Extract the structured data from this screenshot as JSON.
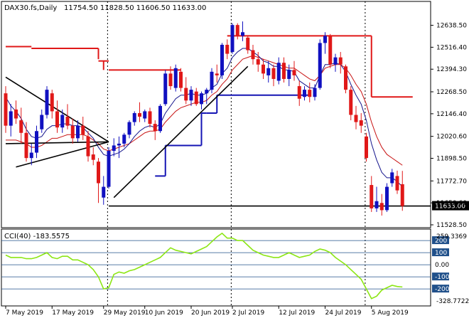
{
  "header": {
    "symbol": "DAX30.fs,Daily",
    "ohlc": "11754.50 11828.50 11606.50 11633.00"
  },
  "indicator": {
    "label": "CCI(40) -183.5575",
    "max_label": "259.3369",
    "min_label": "-328.7722",
    "level_labels": [
      "200",
      "100",
      "0.00",
      "-100",
      "-200"
    ]
  },
  "colors": {
    "bull": "#1010c0",
    "bear": "#e01818",
    "channel": "#e01818",
    "stop": "#1414b4",
    "ma_blue": "#14148c",
    "ma_red": "#c81414",
    "trend": "#000000",
    "cci": "#8ce614",
    "level_line": "#20508a",
    "price_tag_bg": "#000000"
  },
  "chart_data": [
    {
      "type": "candlestick",
      "title": "DAX30.fs,Daily",
      "ylim": [
        11528.5,
        12700
      ],
      "y_ticks": [
        "12638.50",
        "12516.40",
        "12394.30",
        "12268.50",
        "12146.40",
        "12020.60",
        "11898.50",
        "11772.70",
        "11650.60",
        "11528.50"
      ],
      "current_price": "11633.00",
      "x_ticks": [
        "7 May 2019",
        "17 May 2019",
        "29 May 2019",
        "10 Jun 2019",
        "20 Jun 2019",
        "2 Jul 2019",
        "12 Jul 2019",
        "24 Jul 2019",
        "5 Aug 2019"
      ],
      "candles": [
        {
          "o": 12260,
          "h": 12300,
          "l": 12040,
          "c": 12080
        },
        {
          "o": 12080,
          "h": 12200,
          "l": 12020,
          "c": 12160
        },
        {
          "o": 12170,
          "h": 12220,
          "l": 12090,
          "c": 12120
        },
        {
          "o": 12110,
          "h": 12180,
          "l": 11980,
          "c": 12040
        },
        {
          "o": 12040,
          "h": 12100,
          "l": 11880,
          "c": 11900
        },
        {
          "o": 11900,
          "h": 11980,
          "l": 11860,
          "c": 11930
        },
        {
          "o": 11930,
          "h": 12080,
          "l": 11900,
          "c": 12050
        },
        {
          "o": 12060,
          "h": 12170,
          "l": 12040,
          "c": 12140
        },
        {
          "o": 12140,
          "h": 12300,
          "l": 12120,
          "c": 12280
        },
        {
          "o": 12260,
          "h": 12280,
          "l": 12120,
          "c": 12160
        },
        {
          "o": 12160,
          "h": 12220,
          "l": 12040,
          "c": 12070
        },
        {
          "o": 12070,
          "h": 12170,
          "l": 12040,
          "c": 12140
        },
        {
          "o": 12130,
          "h": 12200,
          "l": 12060,
          "c": 12080
        },
        {
          "o": 12080,
          "h": 12120,
          "l": 11980,
          "c": 12010
        },
        {
          "o": 12010,
          "h": 12110,
          "l": 11990,
          "c": 12080
        },
        {
          "o": 12080,
          "h": 12130,
          "l": 12000,
          "c": 12030
        },
        {
          "o": 12020,
          "h": 12050,
          "l": 11880,
          "c": 11910
        },
        {
          "o": 11920,
          "h": 11960,
          "l": 11860,
          "c": 11890
        },
        {
          "o": 11880,
          "h": 11900,
          "l": 11650,
          "c": 11760
        },
        {
          "o": 11680,
          "h": 11800,
          "l": 11640,
          "c": 11740
        },
        {
          "o": 11740,
          "h": 11960,
          "l": 11730,
          "c": 11940
        },
        {
          "o": 11940,
          "h": 12010,
          "l": 11910,
          "c": 11970
        },
        {
          "o": 11970,
          "h": 12020,
          "l": 11900,
          "c": 11980
        },
        {
          "o": 11980,
          "h": 12040,
          "l": 11960,
          "c": 12030
        },
        {
          "o": 12030,
          "h": 12110,
          "l": 12010,
          "c": 12100
        },
        {
          "o": 12100,
          "h": 12160,
          "l": 12080,
          "c": 12150
        },
        {
          "o": 12150,
          "h": 12210,
          "l": 12100,
          "c": 12130
        },
        {
          "o": 12120,
          "h": 12170,
          "l": 12100,
          "c": 12160
        },
        {
          "o": 12160,
          "h": 12180,
          "l": 12070,
          "c": 12090
        },
        {
          "o": 12090,
          "h": 12110,
          "l": 12000,
          "c": 12050
        },
        {
          "o": 12050,
          "h": 12200,
          "l": 12040,
          "c": 12190
        },
        {
          "o": 12200,
          "h": 12390,
          "l": 12190,
          "c": 12370
        },
        {
          "o": 12370,
          "h": 12410,
          "l": 12280,
          "c": 12300
        },
        {
          "o": 12290,
          "h": 12420,
          "l": 12270,
          "c": 12400
        },
        {
          "o": 12380,
          "h": 12400,
          "l": 12270,
          "c": 12290
        },
        {
          "o": 12290,
          "h": 12350,
          "l": 12200,
          "c": 12220
        },
        {
          "o": 12220,
          "h": 12300,
          "l": 12190,
          "c": 12280
        },
        {
          "o": 12270,
          "h": 12290,
          "l": 12190,
          "c": 12200
        },
        {
          "o": 12200,
          "h": 12270,
          "l": 12170,
          "c": 12260
        },
        {
          "o": 12260,
          "h": 12290,
          "l": 12200,
          "c": 12280
        },
        {
          "o": 12280,
          "h": 12400,
          "l": 12260,
          "c": 12380
        },
        {
          "o": 12370,
          "h": 12420,
          "l": 12320,
          "c": 12360
        },
        {
          "o": 12360,
          "h": 12540,
          "l": 12340,
          "c": 12530
        },
        {
          "o": 12530,
          "h": 12560,
          "l": 12450,
          "c": 12480
        },
        {
          "o": 12490,
          "h": 12650,
          "l": 12480,
          "c": 12640
        },
        {
          "o": 12640,
          "h": 12650,
          "l": 12560,
          "c": 12580
        },
        {
          "o": 12580,
          "h": 12660,
          "l": 12550,
          "c": 12600
        },
        {
          "o": 12570,
          "h": 12580,
          "l": 12480,
          "c": 12500
        },
        {
          "o": 12500,
          "h": 12530,
          "l": 12420,
          "c": 12450
        },
        {
          "o": 12450,
          "h": 12490,
          "l": 12380,
          "c": 12420
        },
        {
          "o": 12420,
          "h": 12450,
          "l": 12340,
          "c": 12370
        },
        {
          "o": 12360,
          "h": 12440,
          "l": 12320,
          "c": 12400
        },
        {
          "o": 12400,
          "h": 12420,
          "l": 12300,
          "c": 12340
        },
        {
          "o": 12330,
          "h": 12460,
          "l": 12310,
          "c": 12430
        },
        {
          "o": 12430,
          "h": 12460,
          "l": 12320,
          "c": 12340
        },
        {
          "o": 12340,
          "h": 12420,
          "l": 12300,
          "c": 12390
        },
        {
          "o": 12390,
          "h": 12440,
          "l": 12330,
          "c": 12360
        },
        {
          "o": 12300,
          "h": 12330,
          "l": 12190,
          "c": 12230
        },
        {
          "o": 12240,
          "h": 12300,
          "l": 12220,
          "c": 12280
        },
        {
          "o": 12280,
          "h": 12320,
          "l": 12210,
          "c": 12240
        },
        {
          "o": 12240,
          "h": 12310,
          "l": 12220,
          "c": 12290
        },
        {
          "o": 12290,
          "h": 12560,
          "l": 12280,
          "c": 12540
        },
        {
          "o": 12540,
          "h": 12600,
          "l": 12480,
          "c": 12580
        },
        {
          "o": 12580,
          "h": 12590,
          "l": 12400,
          "c": 12420
        },
        {
          "o": 12420,
          "h": 12480,
          "l": 12380,
          "c": 12460
        },
        {
          "o": 12460,
          "h": 12490,
          "l": 12370,
          "c": 12420
        },
        {
          "o": 12410,
          "h": 12420,
          "l": 12260,
          "c": 12280
        },
        {
          "o": 12280,
          "h": 12300,
          "l": 12110,
          "c": 12140
        },
        {
          "o": 12140,
          "h": 12190,
          "l": 12060,
          "c": 12100
        },
        {
          "o": 12110,
          "h": 12150,
          "l": 12040,
          "c": 12080
        },
        {
          "o": 12020,
          "h": 12040,
          "l": 11880,
          "c": 11900
        },
        {
          "o": 11750,
          "h": 11800,
          "l": 11600,
          "c": 11620
        },
        {
          "o": 11620,
          "h": 11740,
          "l": 11600,
          "c": 11660
        },
        {
          "o": 11650,
          "h": 11700,
          "l": 11580,
          "c": 11610
        },
        {
          "o": 11610,
          "h": 11760,
          "l": 11600,
          "c": 11740
        },
        {
          "o": 11760,
          "h": 11840,
          "l": 11740,
          "c": 11820
        },
        {
          "o": 11800,
          "h": 11830,
          "l": 11700,
          "c": 11720
        },
        {
          "o": 11754.5,
          "h": 11828.5,
          "l": 11606.5,
          "c": 11633
        }
      ],
      "ma_fast": [
        12240,
        12190,
        12160,
        12120,
        12060,
        12020,
        12010,
        12020,
        12060,
        12080,
        12080,
        12090,
        12090,
        12080,
        12080,
        12070,
        12040,
        12010,
        11960,
        11920,
        11910,
        11920,
        11930,
        11950,
        11980,
        12020,
        12050,
        12070,
        12080,
        12070,
        12090,
        12150,
        12190,
        12230,
        12250,
        12250,
        12260,
        12250,
        12250,
        12260,
        12290,
        12310,
        12370,
        12400,
        12460,
        12490,
        12510,
        12510,
        12490,
        12470,
        12440,
        12430,
        12410,
        12410,
        12390,
        12390,
        12380,
        12330,
        12310,
        12290,
        12290,
        12360,
        12420,
        12420,
        12430,
        12420,
        12380,
        12310,
        12250,
        12200,
        12110,
        11980,
        11890,
        11820,
        11790,
        11790,
        11770,
        11740
      ],
      "ma_slow": [
        12000,
        12000,
        12000,
        11990,
        11980,
        11960,
        11960,
        11970,
        11990,
        12010,
        12010,
        12020,
        12030,
        12030,
        12030,
        12030,
        12020,
        12000,
        11980,
        11950,
        11940,
        11950,
        11960,
        11970,
        11980,
        12000,
        12020,
        12040,
        12050,
        12050,
        12060,
        12100,
        12130,
        12160,
        12180,
        12190,
        12200,
        12210,
        12210,
        12220,
        12250,
        12270,
        12310,
        12340,
        12390,
        12420,
        12450,
        12460,
        12470,
        12460,
        12450,
        12440,
        12430,
        12420,
        12410,
        12400,
        12400,
        12380,
        12360,
        12340,
        12330,
        12360,
        12400,
        12410,
        12420,
        12420,
        12400,
        12360,
        12310,
        12270,
        12200,
        12100,
        12020,
        11960,
        11920,
        11900,
        11880,
        11860
      ],
      "channel_upper": [
        {
          "start": 0,
          "end": 5,
          "value": 12520
        },
        {
          "start": 5,
          "end": 18,
          "value": 12510
        },
        {
          "start": 18,
          "end": 20,
          "value": 12440
        },
        {
          "start": 20,
          "end": 34,
          "value": 12390
        },
        {
          "start": 43,
          "end": 71,
          "value": 12580
        },
        {
          "start": 71,
          "end": 79,
          "value": 12240
        }
      ],
      "channel_steps": [
        {
          "at": 18,
          "from": 12510,
          "to": 12450
        },
        {
          "at": 19,
          "from": 12440,
          "to": 12390
        },
        {
          "at": 71,
          "from": 12580,
          "to": 12240
        }
      ],
      "stop_lower": [
        {
          "start": 29,
          "end": 31,
          "value": 11800
        },
        {
          "start": 31,
          "end": 38,
          "value": 11970
        },
        {
          "start": 38,
          "end": 39,
          "value": 12150
        },
        {
          "start": 39,
          "end": 41,
          "value": 12150
        },
        {
          "start": 41,
          "end": 59,
          "value": 12250
        }
      ],
      "stop_steps": [
        {
          "at": 31,
          "from": 11800,
          "to": 11970
        },
        {
          "at": 38,
          "from": 11970,
          "to": 12150
        },
        {
          "at": 41,
          "from": 12150,
          "to": 12250
        }
      ],
      "trend_lines": [
        {
          "x1": 0,
          "y1": 12350,
          "x2": 20,
          "y2": 11990
        },
        {
          "x1": 2,
          "y1": 11850,
          "x2": 20,
          "y2": 11990
        },
        {
          "x1": 0,
          "y1": 11980,
          "x2": 20,
          "y2": 11990
        },
        {
          "x1": 21,
          "y1": 11680,
          "x2": 47,
          "y2": 12410
        }
      ],
      "support_level": 11633
    },
    {
      "type": "line",
      "title": "CCI(40) -183.5575",
      "ylim": [
        -328.7722,
        259.3369
      ],
      "levels": [
        200,
        100,
        0,
        -100,
        -200
      ],
      "values": [
        80,
        60,
        60,
        60,
        50,
        50,
        60,
        80,
        100,
        60,
        50,
        70,
        70,
        40,
        40,
        20,
        0,
        -40,
        -100,
        -200,
        -190,
        -80,
        -60,
        -70,
        -50,
        -40,
        -20,
        0,
        20,
        40,
        60,
        100,
        140,
        120,
        110,
        100,
        90,
        110,
        130,
        150,
        190,
        230,
        260,
        220,
        220,
        200,
        200,
        160,
        120,
        100,
        80,
        70,
        60,
        60,
        80,
        100,
        80,
        60,
        70,
        80,
        110,
        130,
        120,
        100,
        60,
        30,
        0,
        -40,
        -80,
        -120,
        -200,
        -280,
        -260,
        -210,
        -190,
        -170,
        -180,
        -184
      ]
    }
  ]
}
